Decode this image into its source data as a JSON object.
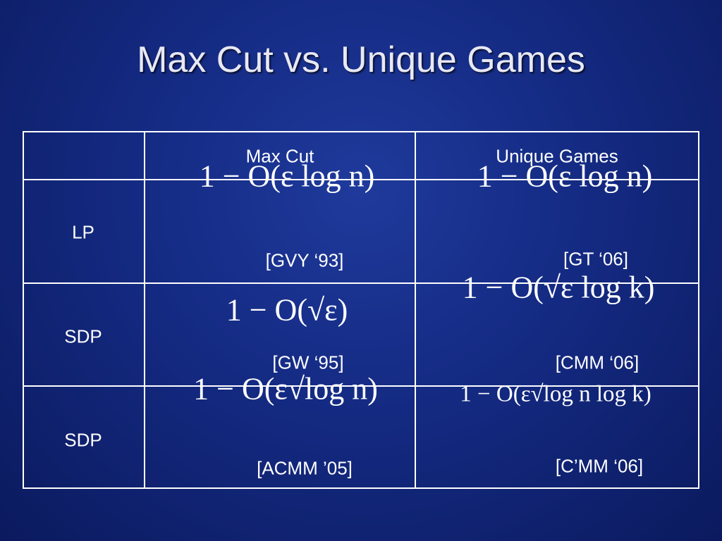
{
  "title": "Max Cut vs. Unique Games",
  "table": {
    "columns": [
      "Max Cut",
      "Unique Games"
    ],
    "rows": [
      {
        "label": "LP",
        "cells": [
          {
            "formula": "1 − O(ε log n)",
            "citation": "[GVY ‘93]"
          },
          {
            "formula": "1 − O(ε log n)",
            "citation": "[GT ‘06]"
          }
        ]
      },
      {
        "label": "SDP",
        "cells": [
          {
            "formula": "1 − O(√ε)",
            "citation": "[GW ‘95]"
          },
          {
            "formula": "1 − O(√ε log k)",
            "citation": "[CMM ‘06]"
          }
        ]
      },
      {
        "label": "SDP",
        "cells": [
          {
            "formula": "1 − O(ε√log n)",
            "citation": "[ACMM ’05]"
          },
          {
            "formula": "1 − O(ε√log n log k)",
            "citation": "[C’MM ‘06]"
          }
        ]
      }
    ]
  }
}
